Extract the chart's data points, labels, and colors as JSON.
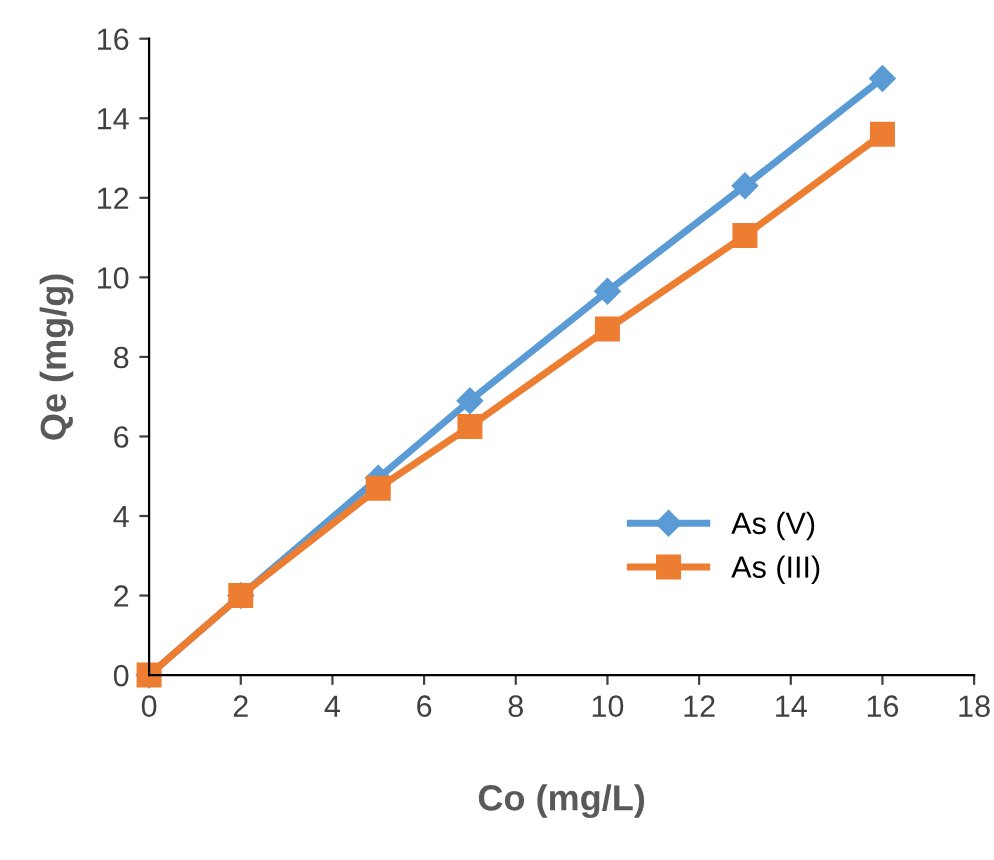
{
  "chart_data": {
    "type": "line",
    "xlabel": "Co (mg/L)",
    "ylabel": "Qe (mg/g)",
    "x": [
      0,
      2,
      5,
      7,
      10,
      13,
      16
    ],
    "series": [
      {
        "name": "As (V)",
        "color": "#5b9bd5",
        "marker": "diamond",
        "values": [
          0,
          2,
          4.95,
          6.9,
          9.65,
          12.3,
          15.0
        ]
      },
      {
        "name": "As (III)",
        "color": "#ed7d31",
        "marker": "square",
        "values": [
          0,
          2,
          4.7,
          6.25,
          8.7,
          11.05,
          13.6
        ]
      }
    ],
    "xlim": [
      0,
      18
    ],
    "xticks": [
      0,
      2,
      4,
      6,
      8,
      10,
      12,
      14,
      16,
      18
    ],
    "ylim": [
      0,
      16
    ],
    "yticks": [
      0,
      2,
      4,
      6,
      8,
      10,
      12,
      14,
      16
    ],
    "grid": false,
    "legend": "right",
    "line_style": "solid"
  }
}
